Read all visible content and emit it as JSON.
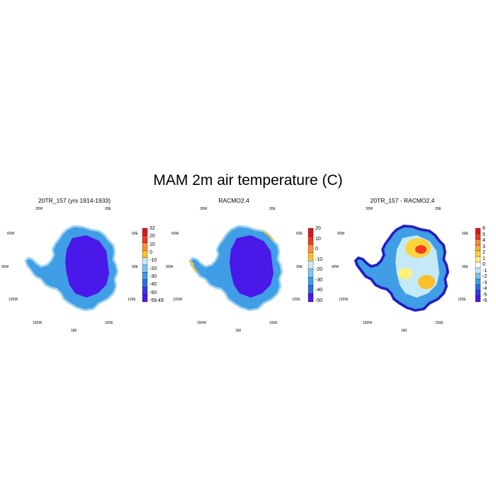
{
  "figure": {
    "title": "MAM 2m air temperature (C)"
  },
  "panels": [
    {
      "title": "20TR_157 (yrs 1914-1933)",
      "lon_labels": [
        "30W",
        "30E",
        "60W",
        "60E",
        "90W",
        "90E",
        "120W",
        "120E",
        "150W",
        "150E",
        "180"
      ],
      "colorbar": {
        "labels": [
          "32",
          "20",
          "10",
          "0",
          "-10",
          "-20",
          "-30",
          "-40",
          "-50",
          "-59.49"
        ],
        "colors": [
          "#d7191c",
          "#f03b20",
          "#fd8d3c",
          "#fdbf2d",
          "#c6e9f7",
          "#7fc4f0",
          "#3f9ee6",
          "#2f6fe0",
          "#3a37e6",
          "#4a18e8"
        ]
      }
    },
    {
      "title": "RACMO2.4",
      "lon_labels": [
        "30W",
        "30E",
        "60W",
        "60E",
        "90W",
        "90E",
        "120W",
        "120E",
        "150W",
        "150E",
        "180"
      ],
      "colorbar": {
        "labels": [
          "20",
          "10",
          "0",
          "-10",
          "-20",
          "-30",
          "-40",
          "-50"
        ],
        "colors": [
          "#d7191c",
          "#f03b20",
          "#fd8d3c",
          "#fdbf2d",
          "#c6e9f7",
          "#7fc4f0",
          "#3f9ee6",
          "#2f6fe0",
          "#4a18e8"
        ]
      }
    },
    {
      "title": "20TR_157 - RACMO2.4",
      "lon_labels": [
        "30W",
        "30E",
        "60W",
        "60E",
        "90W",
        "90E",
        "120W",
        "120E",
        "150W",
        "150E",
        "180"
      ],
      "colorbar": {
        "labels": [
          "6",
          "5",
          "4",
          "3",
          "2",
          "1",
          "0",
          "-1",
          "-2",
          "-3",
          "-4",
          "-5",
          "-6"
        ],
        "colors": [
          "#d7191c",
          "#f03b20",
          "#fd8d3c",
          "#fdae3c",
          "#fdd33c",
          "#fff07a",
          "#ffffff",
          "#bfe6f7",
          "#7fc4f0",
          "#3f9ee6",
          "#2f6fe0",
          "#3a37e6",
          "#4a18e8"
        ]
      }
    }
  ]
}
